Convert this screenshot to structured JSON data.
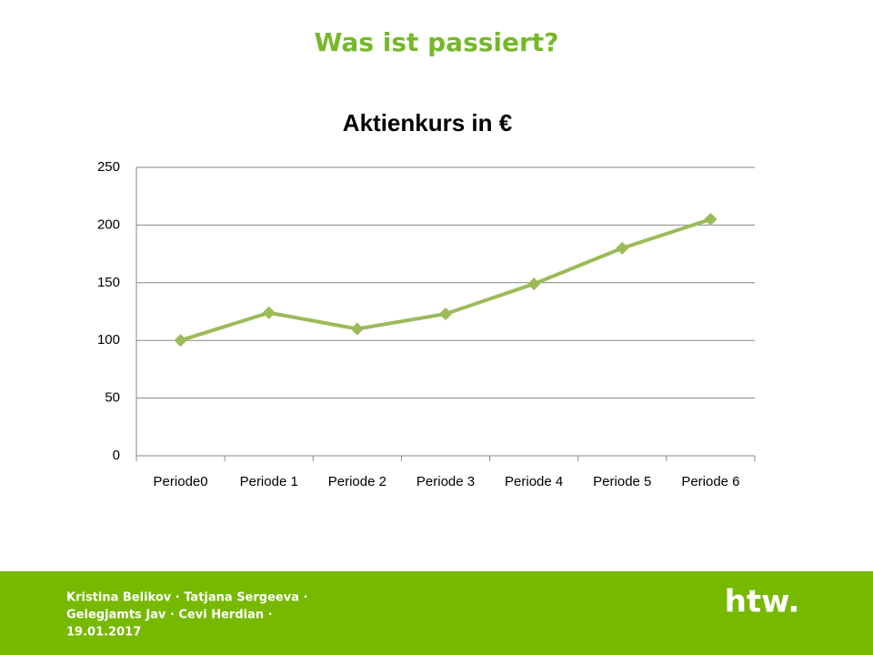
{
  "slide_title": "Was ist passiert?",
  "chart_data": {
    "type": "line",
    "title": "Aktienkurs in €",
    "categories": [
      "Periode0",
      "Periode 1",
      "Periode 2",
      "Periode 3",
      "Periode 4",
      "Periode 5",
      "Periode 6"
    ],
    "series": [
      {
        "name": "Aktienkurs",
        "color": "#9bbb59",
        "values": [
          100,
          124,
          110,
          123,
          149,
          180,
          205
        ]
      }
    ],
    "ylim": [
      0,
      250
    ],
    "yticks": [
      0,
      50,
      100,
      150,
      200,
      250
    ],
    "grid": true
  },
  "footer": {
    "authors": [
      "Kristina  Belikov · Tatjana Sergeeva ·",
      "Gelegjamts Jav · Cevi Herdian ·",
      "19.01.2017"
    ],
    "logo": "htw."
  }
}
